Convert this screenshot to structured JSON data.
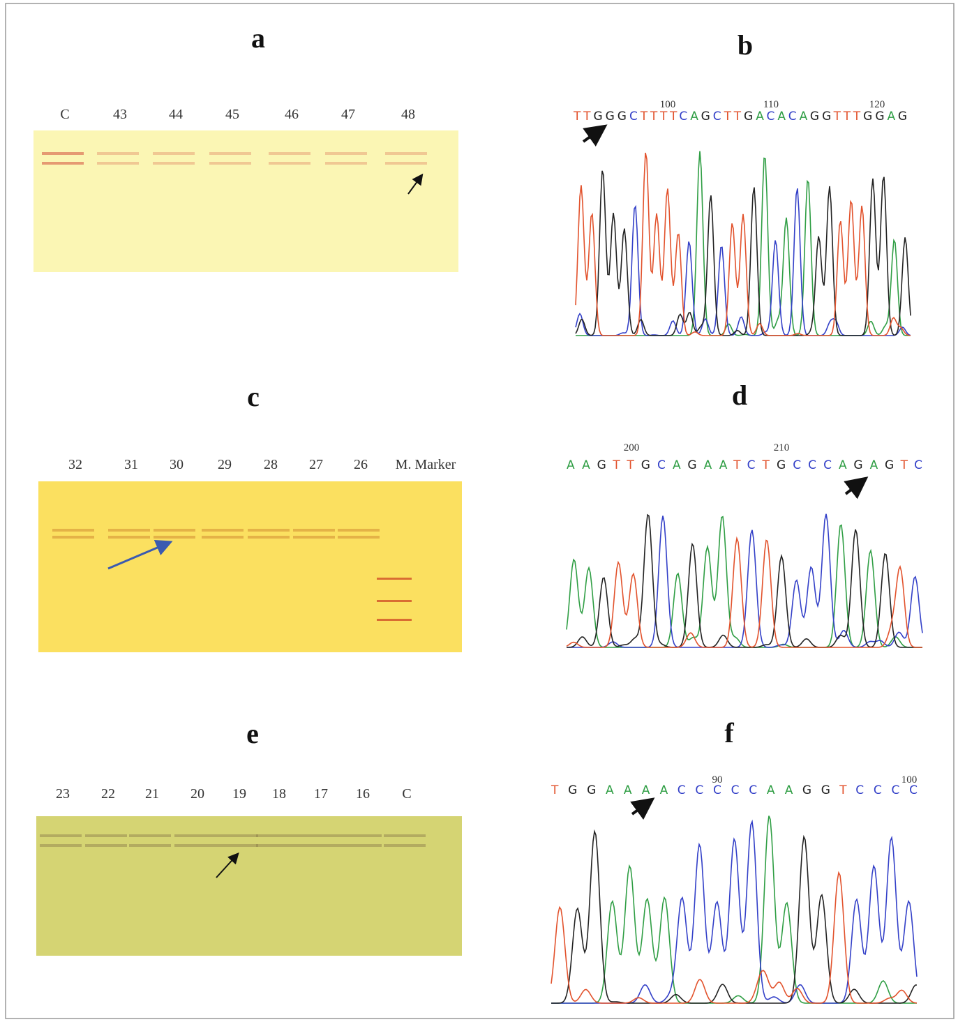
{
  "panels": [
    {
      "label": "a",
      "lanes": [
        "C",
        "43",
        "44",
        "45",
        "46",
        "47",
        "48"
      ]
    },
    {
      "label": "b",
      "positions": [
        "100",
        "110",
        "120"
      ],
      "sequence": "TTGGGCTTTTCAGCTTGACACAGGTTTGGAG"
    },
    {
      "label": "c",
      "lanes": [
        "32",
        "31",
        "30",
        "29",
        "28",
        "27",
        "26",
        "M. Marker"
      ]
    },
    {
      "label": "d",
      "positions": [
        "200",
        "210"
      ],
      "sequence": "AAGTTGCAGAATCTGCCCAGAGTC"
    },
    {
      "label": "e",
      "lanes": [
        "23",
        "22",
        "21",
        "20",
        "19",
        "18",
        "17",
        "16",
        "C"
      ]
    },
    {
      "label": "f",
      "positions": [
        "90",
        "100"
      ],
      "sequence": "TGGAAAACCCCCAAGGTCCCC"
    }
  ]
}
